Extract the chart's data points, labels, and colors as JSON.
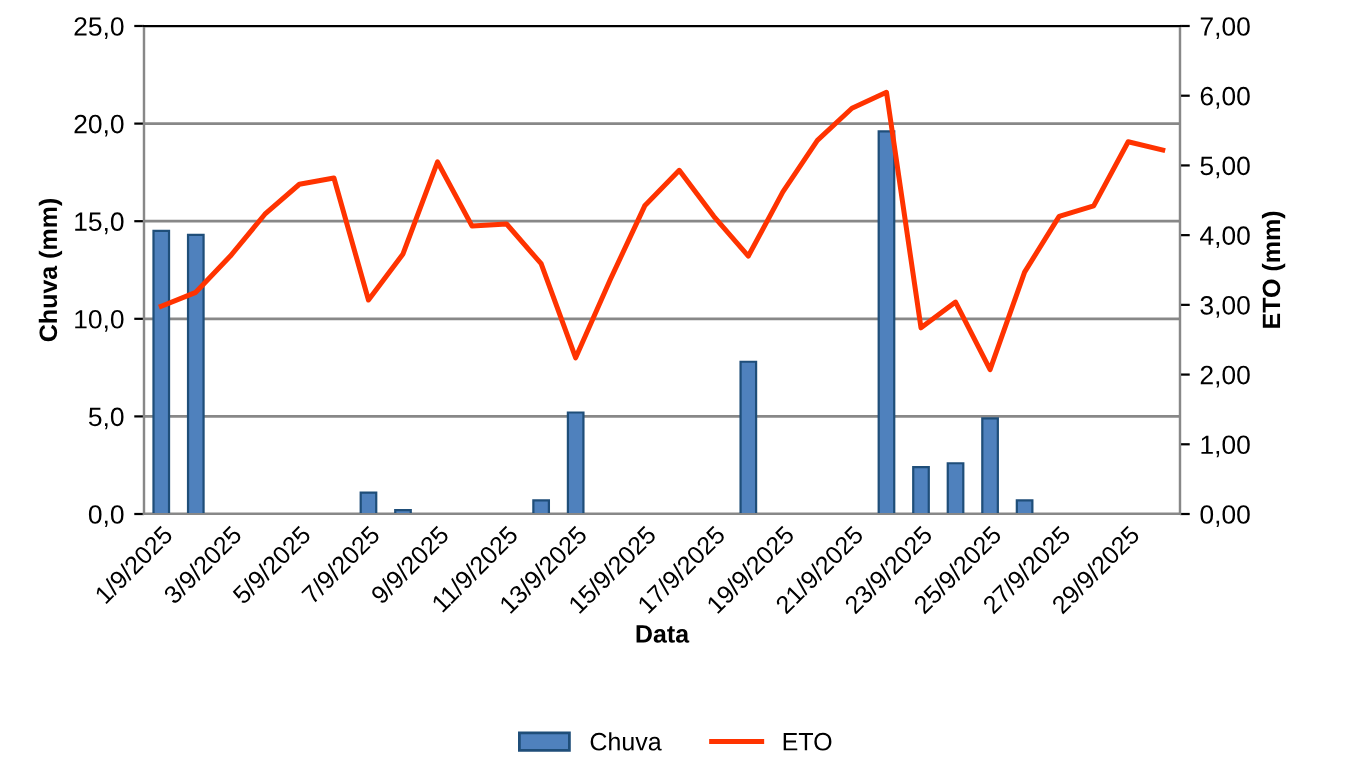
{
  "chart_data": {
    "type": "bar",
    "xlabel": "Data",
    "ylabel": "Chuva (mm)",
    "y2label": "ETO (mm)",
    "categories": [
      "1/9/2025",
      null,
      "3/9/2025",
      null,
      "5/9/2025",
      null,
      "7/9/2025",
      null,
      "9/9/2025",
      null,
      "11/9/2025",
      null,
      "13/9/2025",
      null,
      "15/9/2025",
      null,
      "17/9/2025",
      null,
      "19/9/2025",
      null,
      "21/9/2025",
      null,
      "23/9/2025",
      null,
      "25/9/2025",
      null,
      "27/9/2025",
      null,
      "29/9/2025",
      null
    ],
    "series": [
      {
        "name": "Chuva",
        "color": "#4f81bd",
        "values": [
          14.5,
          14.3,
          null,
          null,
          null,
          null,
          1.1,
          0.2,
          null,
          null,
          null,
          0.7,
          5.2,
          null,
          null,
          null,
          null,
          7.8,
          null,
          null,
          null,
          19.6,
          2.4,
          2.6,
          4.9,
          0.7,
          null,
          null,
          null,
          null
        ]
      },
      {
        "name": "ETO",
        "type": "line",
        "axis": "y2",
        "color": "#ff3300",
        "values": [
          2.98,
          3.18,
          3.7,
          4.3,
          4.73,
          4.82,
          3.07,
          3.73,
          5.05,
          4.13,
          4.16,
          3.59,
          2.24,
          3.36,
          4.42,
          4.93,
          4.27,
          3.7,
          4.62,
          5.36,
          5.82,
          6.05,
          2.67,
          3.04,
          2.07,
          3.47,
          4.27,
          4.42,
          5.34,
          5.22
        ]
      }
    ],
    "ylim": [
      0,
      25
    ],
    "yticks": [
      {
        "value": 0,
        "label": "0,0"
      },
      {
        "value": 5,
        "label": "5,0"
      },
      {
        "value": 10,
        "label": "10,0"
      },
      {
        "value": 15,
        "label": "15,0"
      },
      {
        "value": 20,
        "label": "20,0"
      },
      {
        "value": 25,
        "label": "25,0"
      }
    ],
    "y2lim": [
      0,
      7
    ],
    "y2ticks": [
      {
        "value": 0,
        "label": "0,00"
      },
      {
        "value": 1,
        "label": "1,00"
      },
      {
        "value": 2,
        "label": "2,00"
      },
      {
        "value": 3,
        "label": "3,00"
      },
      {
        "value": 4,
        "label": "4,00"
      },
      {
        "value": 5,
        "label": "5,00"
      },
      {
        "value": 6,
        "label": "6,00"
      },
      {
        "value": 7,
        "label": "7,00"
      }
    ],
    "grid": "y",
    "legend": "bottom",
    "marker": "none",
    "line_style": "solid"
  }
}
